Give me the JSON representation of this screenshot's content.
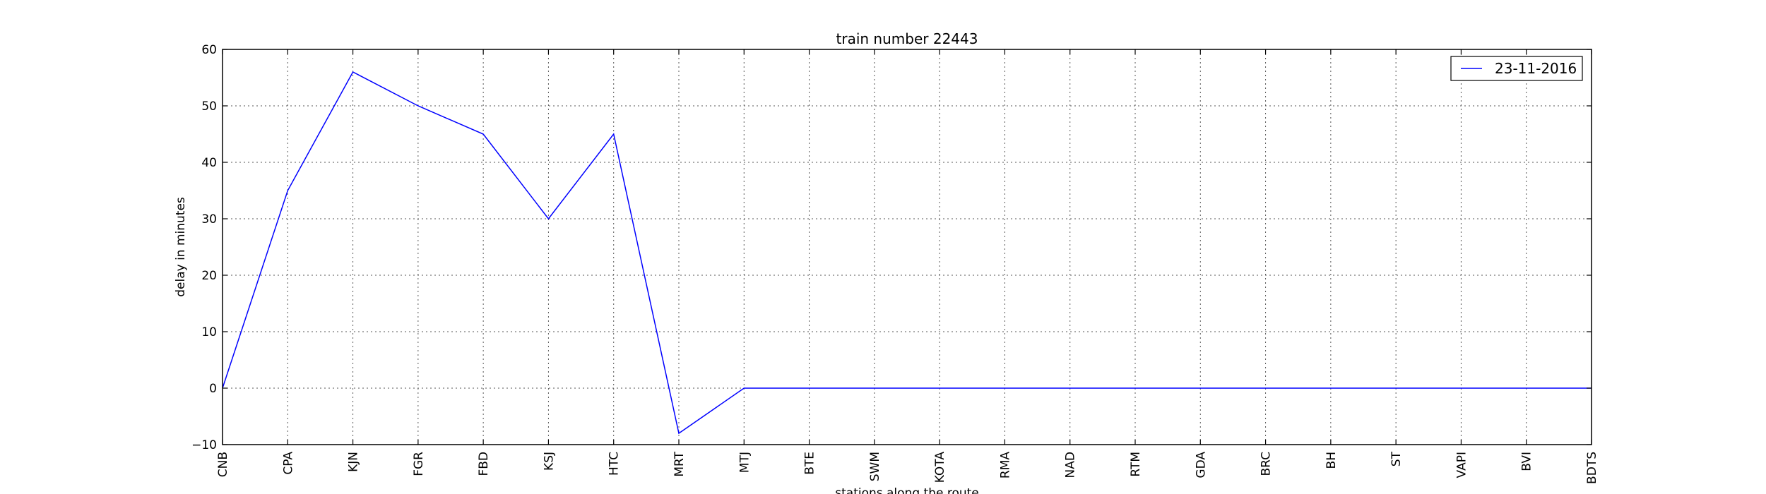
{
  "chart_data": {
    "type": "line",
    "title": "train number 22443",
    "xlabel": "stations along the route",
    "ylabel": "delay in minutes",
    "categories": [
      "CNB",
      "CPA",
      "KJN",
      "FGR",
      "FBD",
      "KSJ",
      "HTC",
      "MRT",
      "MTJ",
      "BTE",
      "SWM",
      "KOTA",
      "RMA",
      "NAD",
      "RTM",
      "GDA",
      "BRC",
      "BH",
      "ST",
      "VAPI",
      "BVI",
      "BDTS"
    ],
    "series": [
      {
        "name": "23-11-2016",
        "color": "#0000ff",
        "values": [
          0,
          35,
          56,
          50,
          45,
          30,
          45,
          -8,
          0,
          0,
          0,
          0,
          0,
          0,
          0,
          0,
          0,
          0,
          0,
          0,
          0,
          0
        ]
      }
    ],
    "ylim": [
      -10,
      60
    ],
    "yticks": [
      -10,
      0,
      10,
      20,
      30,
      40,
      50,
      60
    ],
    "grid": true,
    "legend_position": "top-right"
  }
}
